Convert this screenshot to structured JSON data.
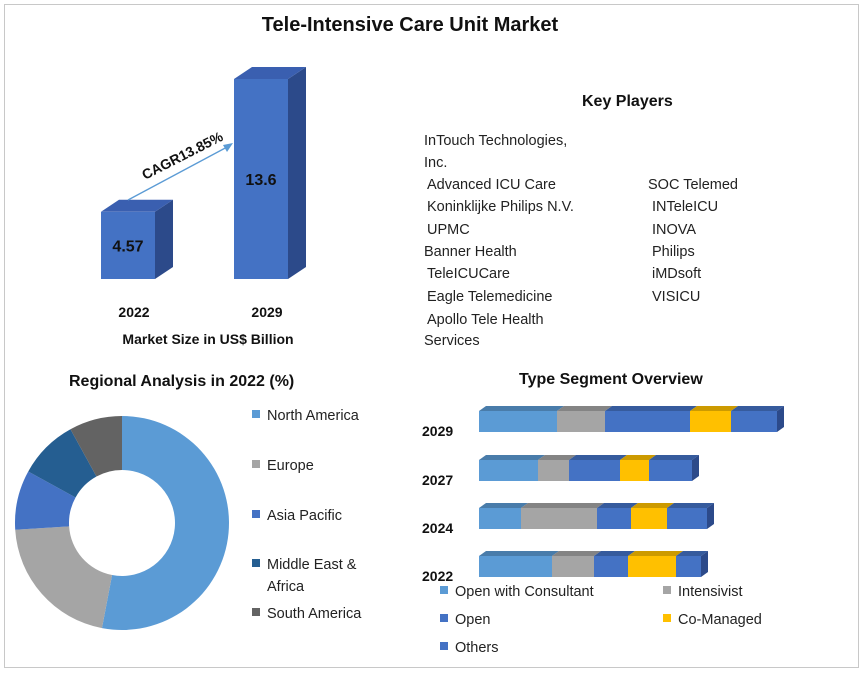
{
  "title": "Tele-Intensive Care Unit Market",
  "market_chart": {
    "caption": "Market Size in US$ Billion",
    "cagr": "CAGR13.85%",
    "bars": [
      {
        "year": "2022",
        "value": 4.57,
        "label": "4.57"
      },
      {
        "year": "2029",
        "value": 13.6,
        "label": "13.6"
      }
    ]
  },
  "key_players": {
    "title": "Key Players",
    "col1": [
      "InTouch Technologies,",
      "Inc.",
      "Advanced  ICU Care",
      "Koninklijke  Philips N.V.",
      "UPMC",
      "Banner  Health",
      "TeleICUCare",
      "Eagle Telemedicine",
      "Apollo Tele Health",
      "Services"
    ],
    "col2": [
      "SOC Telemed",
      "INTeleICU",
      "INOVA",
      "Philips",
      "iMDsoft",
      "VISICU"
    ]
  },
  "regional": {
    "title": "Regional Analysis in 2022 (%)"
  },
  "segment": {
    "title": "Type Segment Overview"
  },
  "chart_data": [
    {
      "type": "bar",
      "categories": [
        "2022",
        "2029"
      ],
      "values": [
        4.57,
        13.6
      ],
      "xlabel": "Market Size in US$ Billion",
      "annotation": "CAGR13.85%"
    },
    {
      "type": "pie",
      "title": "Regional Analysis in 2022 (%)",
      "labels": [
        "North America",
        "Europe",
        "Asia Pacific",
        "Middle East & Africa",
        "South America"
      ],
      "values": [
        53,
        21,
        9,
        9,
        8
      ],
      "colors": [
        "#5b9bd5",
        "#a5a5a5",
        "#4472c4",
        "#255e91",
        "#636363"
      ],
      "legend": "right"
    },
    {
      "type": "bar",
      "title": "Type Segment Overview",
      "orientation": "horizontal-stacked",
      "categories": [
        "2029",
        "2027",
        "2024",
        "2022"
      ],
      "series": [
        {
          "name": "Open with Consultant",
          "color": "#5b9bd5",
          "values": [
            78,
            59,
            42,
            73
          ]
        },
        {
          "name": "Intensivist",
          "color": "#a5a5a5",
          "values": [
            48,
            31,
            76,
            42
          ]
        },
        {
          "name": "Open",
          "color": "#4472c4",
          "values": [
            85,
            51,
            34,
            34
          ]
        },
        {
          "name": "Co-Managed",
          "color": "#ffc000",
          "values": [
            41,
            29,
            36,
            48
          ]
        },
        {
          "name": "Others",
          "color": "#4472c4",
          "values": [
            46,
            43,
            40,
            25
          ]
        }
      ],
      "legend": "bottom"
    }
  ]
}
